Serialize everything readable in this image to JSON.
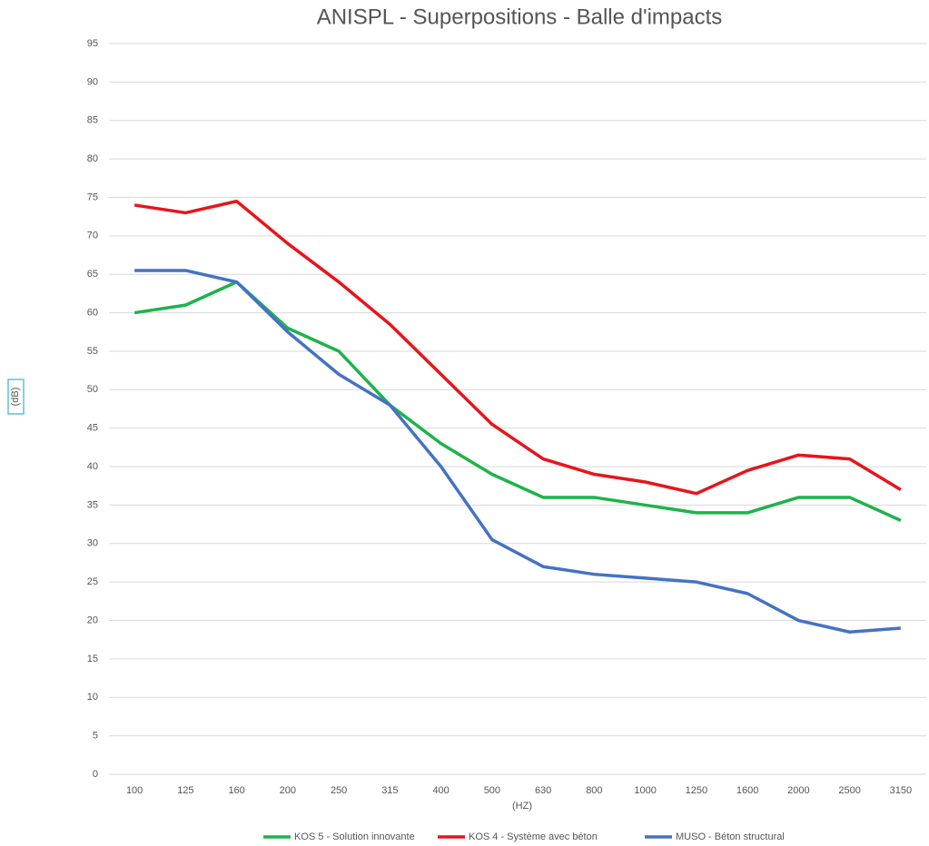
{
  "chart_data": {
    "type": "line",
    "title": "ANISPL - Superpositions - Balle d'impacts",
    "x_label": "(HZ)",
    "y_label": "(dB)",
    "categories": [
      "100",
      "125",
      "160",
      "200",
      "250",
      "315",
      "400",
      "500",
      "630",
      "800",
      "1000",
      "1250",
      "1600",
      "2000",
      "2500",
      "3150"
    ],
    "series": [
      {
        "name": "KOS 5 - Solution innovante",
        "color": "#1db34a",
        "values": [
          60,
          61,
          64,
          58,
          55,
          48,
          43,
          39,
          36,
          36,
          35,
          34,
          34,
          36,
          36,
          33
        ]
      },
      {
        "name": "KOS 4 - Système avec béton",
        "color": "#e8141b",
        "values": [
          74,
          73,
          74.5,
          69,
          64,
          58.5,
          52,
          45.5,
          41,
          39,
          38,
          36.5,
          39.5,
          41.5,
          41,
          37
        ]
      },
      {
        "name": "MUSO - Béton structural",
        "color": "#4472c4",
        "values": [
          65.5,
          65.5,
          64,
          57.5,
          52,
          48,
          40,
          30.5,
          27,
          26,
          25.5,
          25,
          23.5,
          20,
          18.5,
          19
        ]
      }
    ],
    "ylim": [
      0,
      95
    ],
    "yticks": [
      0,
      5,
      10,
      15,
      20,
      25,
      30,
      35,
      40,
      45,
      50,
      55,
      60,
      65,
      70,
      75,
      80,
      85,
      90,
      95
    ],
    "grid": true,
    "legend": "bottom"
  }
}
